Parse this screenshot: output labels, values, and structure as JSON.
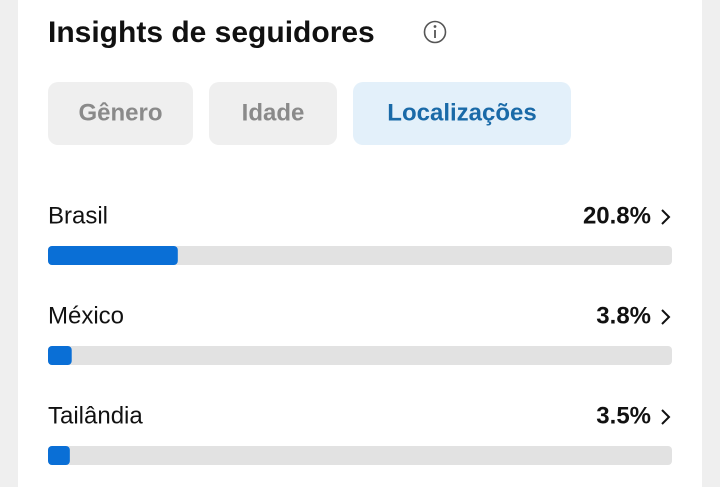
{
  "header": {
    "title": "Insights de seguidores"
  },
  "tabs": [
    "Gênero",
    "Idade",
    "Localizações"
  ],
  "chart_data": {
    "type": "bar",
    "orientation": "horizontal",
    "categories": [
      "Brasil",
      "México",
      "Tailândia"
    ],
    "values": [
      20.8,
      3.8,
      3.5
    ],
    "value_labels": [
      "20.8%",
      "3.8%",
      "3.5%"
    ],
    "xlim": [
      0,
      100
    ],
    "color": "#0a6fd6"
  }
}
